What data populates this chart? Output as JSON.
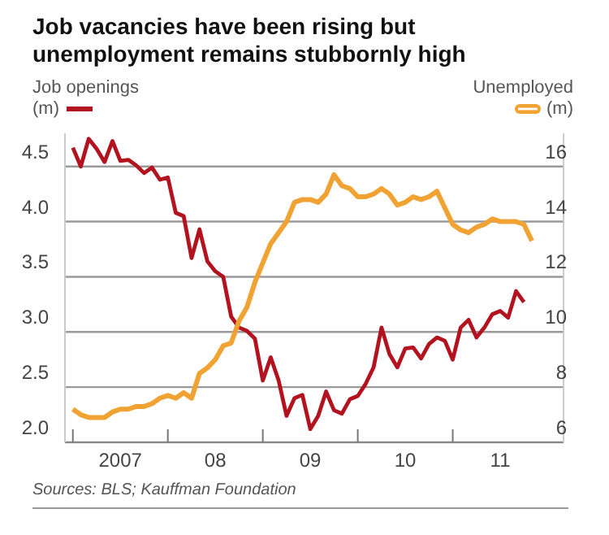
{
  "chart_data": {
    "type": "line",
    "title": "Job vacancies have been rising but unemployment remains stubbornly high",
    "ylabel": "Job openings (m)",
    "y2label": "Unemployed (m)",
    "annotations": [
      "Sources: BLS; Kauffman Foundation"
    ],
    "x": [
      "2007-01",
      "2007-02",
      "2007-03",
      "2007-04",
      "2007-05",
      "2007-06",
      "2007-07",
      "2007-08",
      "2007-09",
      "2007-10",
      "2007-11",
      "2007-12",
      "2008-01",
      "2008-02",
      "2008-03",
      "2008-04",
      "2008-05",
      "2008-06",
      "2008-07",
      "2008-08",
      "2008-09",
      "2008-10",
      "2008-11",
      "2008-12",
      "2009-01",
      "2009-02",
      "2009-03",
      "2009-04",
      "2009-05",
      "2009-06",
      "2009-07",
      "2009-08",
      "2009-09",
      "2009-10",
      "2009-11",
      "2009-12",
      "2010-01",
      "2010-02",
      "2010-03",
      "2010-04",
      "2010-05",
      "2010-06",
      "2010-07",
      "2010-08",
      "2010-09",
      "2010-10",
      "2010-11",
      "2010-12",
      "2011-01",
      "2011-02",
      "2011-03",
      "2011-04",
      "2011-05",
      "2011-06",
      "2011-07",
      "2011-08",
      "2011-09",
      "2011-10",
      "2011-11"
    ],
    "series": [
      {
        "color": "#b3121f",
        "values": [
          4.67,
          4.5,
          4.75,
          4.66,
          4.54,
          4.73,
          4.55,
          4.56,
          4.51,
          4.44,
          4.49,
          4.38,
          4.4,
          4.08,
          4.05,
          3.67,
          3.93,
          3.64,
          3.55,
          3.5,
          3.14,
          3.04,
          3.01,
          2.94,
          2.56,
          2.77,
          2.56,
          2.24,
          2.4,
          2.43,
          2.12,
          2.24,
          2.46,
          2.29,
          2.26,
          2.39,
          2.42,
          2.53,
          2.68,
          3.04,
          2.8,
          2.68,
          2.85,
          2.86,
          2.76,
          2.89,
          2.95,
          2.92,
          2.75,
          3.04,
          3.11,
          2.95,
          3.04,
          3.16,
          3.19,
          3.13,
          3.37,
          3.27,
          null
        ]
      },
      {
        "axis": "y2",
        "color": "#f0a332",
        "values": [
          7.2,
          7.0,
          6.9,
          6.9,
          6.9,
          7.1,
          7.2,
          7.2,
          7.3,
          7.3,
          7.4,
          7.6,
          7.7,
          7.6,
          7.8,
          7.6,
          8.5,
          8.7,
          9.0,
          9.5,
          9.6,
          10.4,
          10.9,
          11.8,
          12.5,
          13.2,
          13.6,
          14.0,
          14.7,
          14.8,
          14.8,
          14.7,
          15.0,
          15.7,
          15.3,
          15.2,
          14.9,
          14.9,
          15.0,
          15.2,
          15.0,
          14.6,
          14.7,
          14.9,
          14.8,
          14.9,
          15.1,
          14.5,
          13.9,
          13.7,
          13.6,
          13.8,
          13.9,
          14.1,
          14.0,
          14.0,
          14.0,
          13.9,
          13.3
        ]
      }
    ],
    "xlim": [
      "2006-12",
      "2012-03"
    ],
    "xticks": [
      {
        "value": "2007-01",
        "label": null
      },
      {
        "value": "2007-07",
        "label": "2007"
      },
      {
        "value": "2008-01",
        "label": null
      },
      {
        "value": "2008-07",
        "label": "08"
      },
      {
        "value": "2009-01",
        "label": null
      },
      {
        "value": "2009-07",
        "label": "09"
      },
      {
        "value": "2010-01",
        "label": null
      },
      {
        "value": "2010-07",
        "label": "10"
      },
      {
        "value": "2011-01",
        "label": null
      },
      {
        "value": "2011-07",
        "label": "11"
      }
    ],
    "ylim": [
      2,
      4.8
    ],
    "yticks": [
      {
        "value": 2,
        "label": "2.0"
      },
      {
        "value": 2.5,
        "label": "2.5"
      },
      {
        "value": 3,
        "label": "3.0"
      },
      {
        "value": 3.5,
        "label": "3.5"
      },
      {
        "value": 4,
        "label": "4.0"
      },
      {
        "value": 4.5,
        "label": "4.5"
      }
    ],
    "y2lim": [
      6,
      17.2
    ],
    "y2ticks": [
      6,
      8,
      10,
      12,
      14,
      16
    ],
    "grid": "y",
    "marker": "none",
    "line_style": "solid"
  }
}
